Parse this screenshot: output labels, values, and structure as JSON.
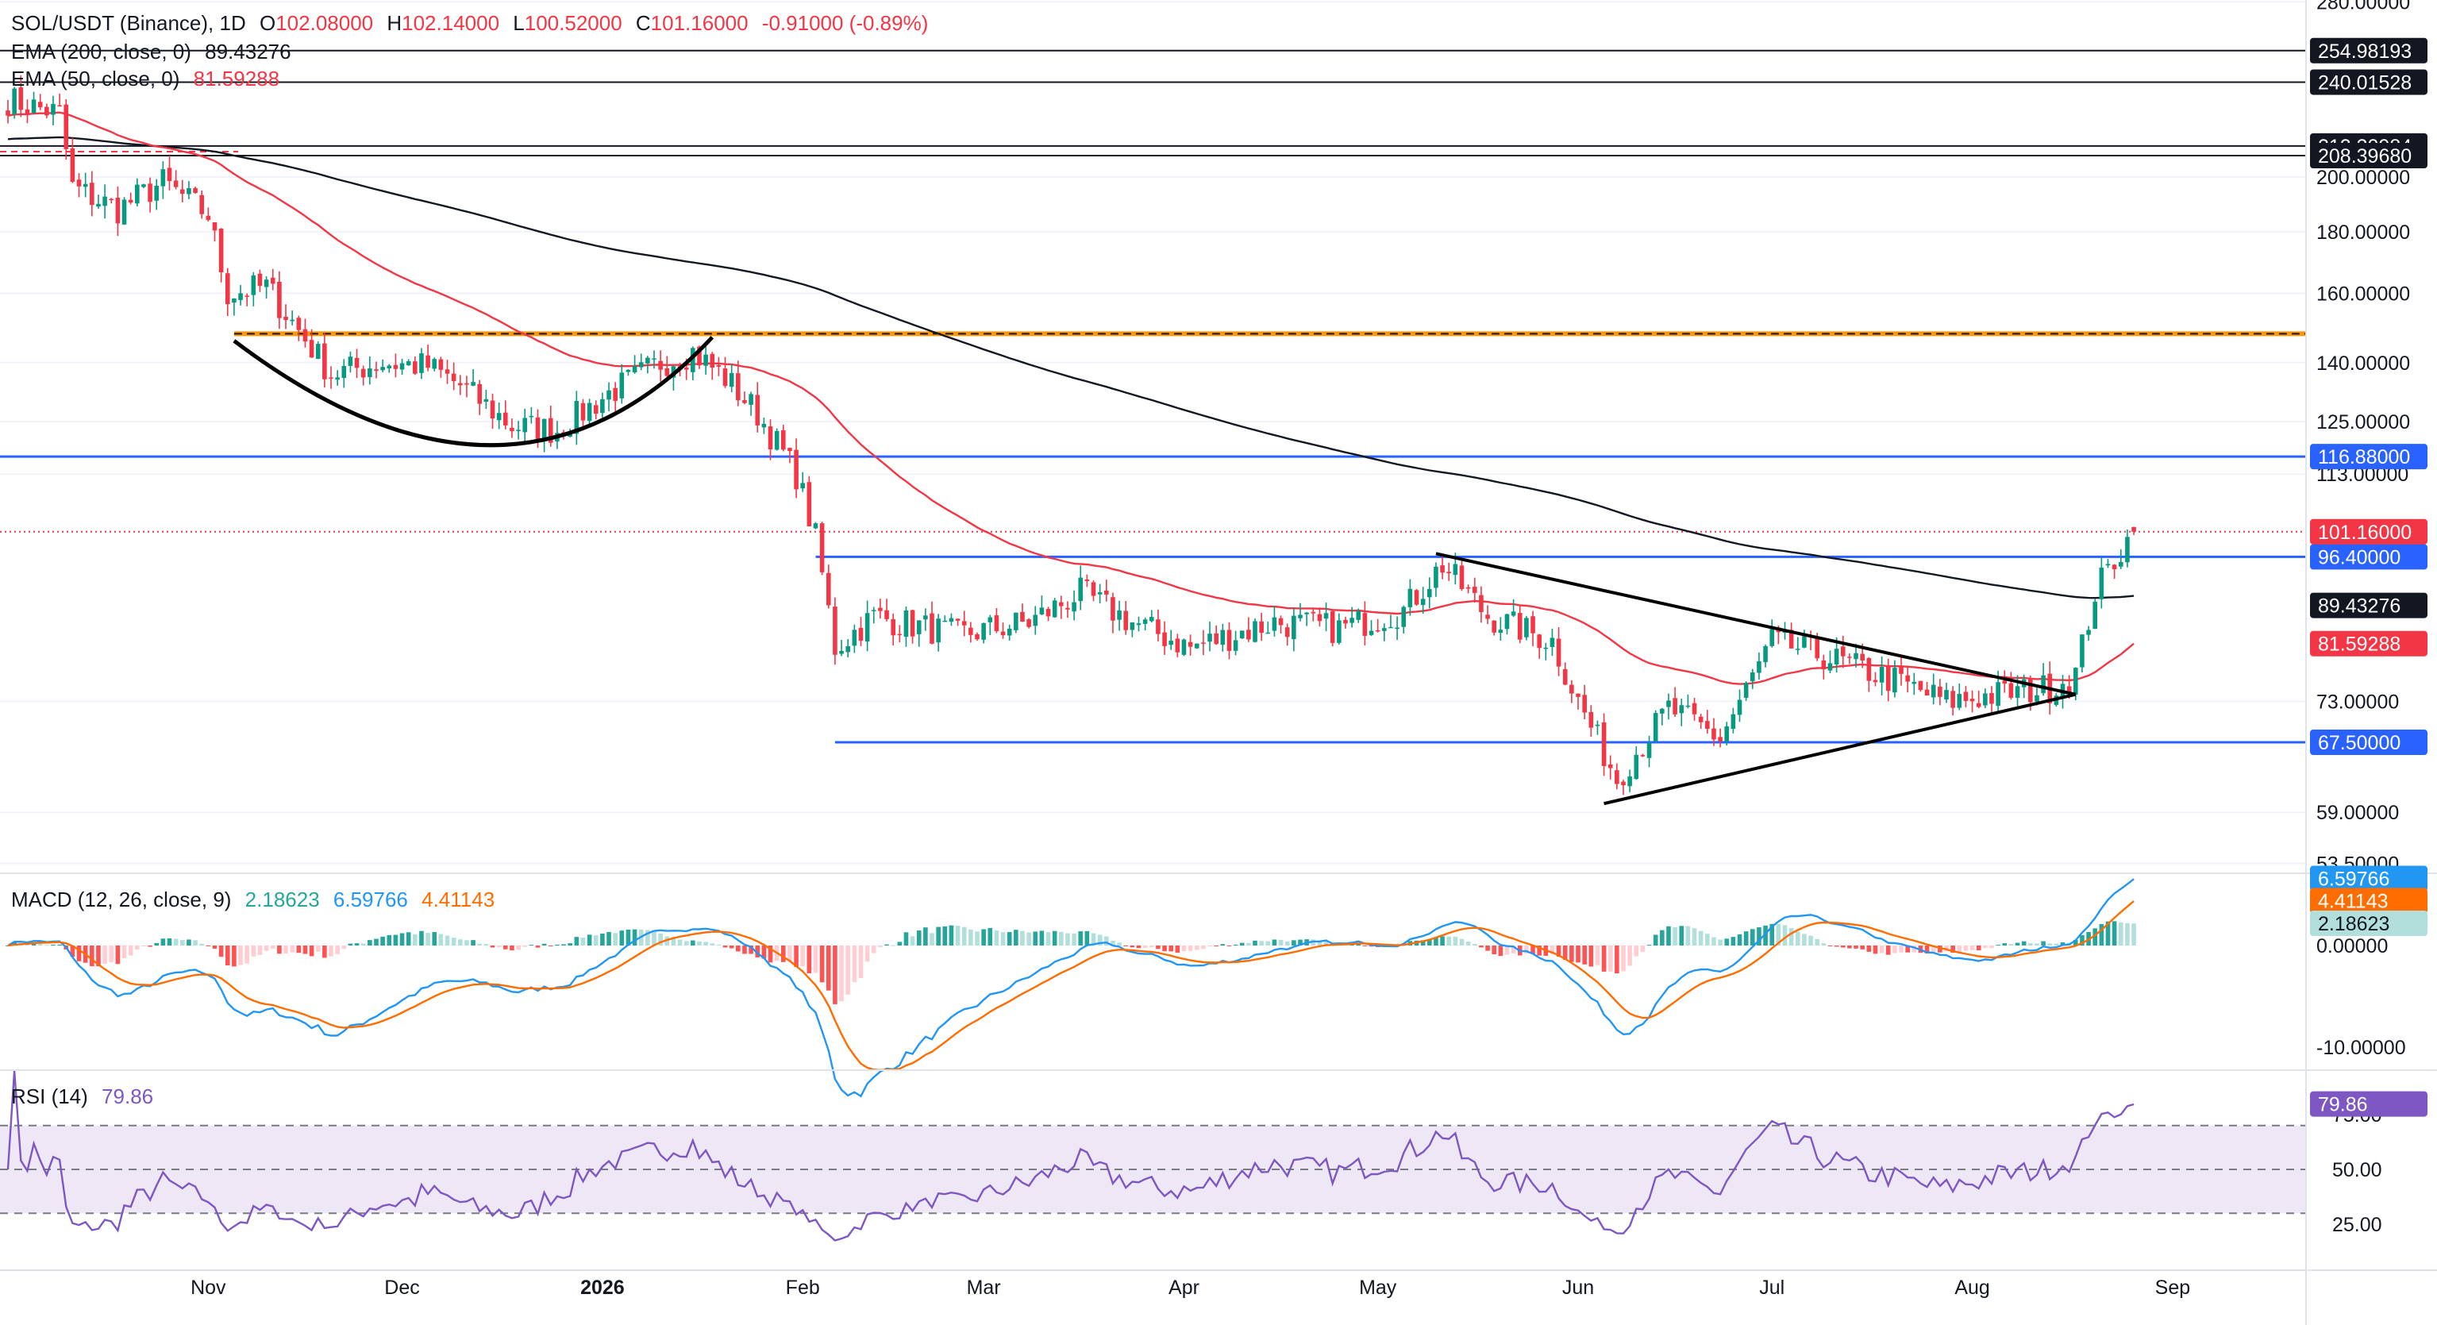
{
  "legend": {
    "symbol": "SOL/USDT (Binance), 1D",
    "open_label": "O",
    "open": "102.08000",
    "high_label": "H",
    "high": "102.14000",
    "low_label": "L",
    "low": "100.52000",
    "close_label": "C",
    "close": "101.16000",
    "change": "-0.91000 (-0.89%)",
    "ema200_label": "EMA (200, close, 0)",
    "ema200_value": "89.43276",
    "ema50_label": "EMA (50, close, 0)",
    "ema50_value": "81.59288",
    "macd_label": "MACD (12, 26, close, 9)",
    "macd_hist": "2.18623",
    "macd_line": "6.59766",
    "macd_signal": "4.41143",
    "rsi_label": "RSI (14)",
    "rsi_value": "79.86"
  },
  "colors": {
    "up": "#089981",
    "down": "#f23645",
    "ema200": "#131722",
    "ema50": "#f23645",
    "macd_line": "#2196f3",
    "signal_line": "#ff6d00",
    "hist_up_strong": "#26a69a",
    "hist_up_weak": "#b2dfdb",
    "hist_down_strong": "#ff5252",
    "hist_down_weak": "#ffcdd2",
    "rsi_line": "#7e57c2",
    "rsi_band": "#ede7f6",
    "hline_blue": "#2962ff",
    "hline_black": "#131722",
    "resistance_orange": "#ff9800"
  },
  "chart_data": {
    "type": "candlestick",
    "price_axis": {
      "scale": "log",
      "ticks": [
        "280.00000",
        "200.00000",
        "180.00000",
        "160.00000",
        "140.00000",
        "125.00000",
        "113.00000",
        "73.00000",
        "59.00000",
        "53.50000"
      ]
    },
    "time_axis": {
      "labels": [
        "Nov",
        "Dec",
        "2026",
        "Feb",
        "Mar",
        "Apr",
        "May",
        "Jun",
        "Jul",
        "Aug",
        "Sep"
      ]
    },
    "horizontal_levels": [
      {
        "value": 254.98193,
        "label": "254.98193",
        "style": "black"
      },
      {
        "value": 240.01528,
        "label": "240.01528",
        "style": "black"
      },
      {
        "value": 212.30984,
        "label": "212.30984",
        "style": "black"
      },
      {
        "value": 208.3968,
        "label": "208.39680",
        "style": "black"
      },
      {
        "value": 148.0,
        "style": "orange-dashed"
      },
      {
        "value": 116.88,
        "label": "116.88000",
        "style": "blue"
      },
      {
        "value": 96.4,
        "label": "96.40000",
        "style": "blue"
      },
      {
        "value": 67.5,
        "label": "67.50000",
        "style": "blue"
      }
    ],
    "last_price": {
      "value": 101.16,
      "label": "101.16000"
    },
    "ema200": {
      "last": 89.43276,
      "label": "89.43276"
    },
    "ema50": {
      "last": 81.59288,
      "label": "81.59288"
    },
    "close_anchors": [
      {
        "date": "2025-10-01",
        "close": 232
      },
      {
        "date": "2025-10-09",
        "close": 226
      },
      {
        "date": "2025-10-11",
        "close": 196
      },
      {
        "date": "2025-10-18",
        "close": 188
      },
      {
        "date": "2025-10-25",
        "close": 198
      },
      {
        "date": "2025-11-01",
        "close": 186
      },
      {
        "date": "2025-11-04",
        "close": 160
      },
      {
        "date": "2025-11-10",
        "close": 162
      },
      {
        "date": "2025-11-20",
        "close": 137
      },
      {
        "date": "2025-11-28",
        "close": 140
      },
      {
        "date": "2025-12-05",
        "close": 139
      },
      {
        "date": "2025-12-10",
        "close": 134
      },
      {
        "date": "2025-12-18",
        "close": 124
      },
      {
        "date": "2025-12-25",
        "close": 123
      },
      {
        "date": "2026-01-02",
        "close": 132
      },
      {
        "date": "2026-01-10",
        "close": 140
      },
      {
        "date": "2026-01-15",
        "close": 143
      },
      {
        "date": "2026-01-20",
        "close": 136
      },
      {
        "date": "2026-01-25",
        "close": 127
      },
      {
        "date": "2026-01-31",
        "close": 113
      },
      {
        "date": "2026-02-03",
        "close": 100
      },
      {
        "date": "2026-02-06",
        "close": 81
      },
      {
        "date": "2026-02-12",
        "close": 86
      },
      {
        "date": "2026-02-25",
        "close": 83
      },
      {
        "date": "2026-03-08",
        "close": 85
      },
      {
        "date": "2026-03-16",
        "close": 90
      },
      {
        "date": "2026-03-24",
        "close": 85
      },
      {
        "date": "2026-04-02",
        "close": 81
      },
      {
        "date": "2026-04-15",
        "close": 85
      },
      {
        "date": "2026-04-25",
        "close": 84
      },
      {
        "date": "2026-05-05",
        "close": 87
      },
      {
        "date": "2026-05-11",
        "close": 95
      },
      {
        "date": "2026-05-18",
        "close": 86
      },
      {
        "date": "2026-05-28",
        "close": 82
      },
      {
        "date": "2026-06-01",
        "close": 73
      },
      {
        "date": "2026-06-07",
        "close": 63
      },
      {
        "date": "2026-06-15",
        "close": 72
      },
      {
        "date": "2026-06-23",
        "close": 68
      },
      {
        "date": "2026-07-01",
        "close": 82
      },
      {
        "date": "2026-07-08",
        "close": 80
      },
      {
        "date": "2026-07-20",
        "close": 76
      },
      {
        "date": "2026-07-28",
        "close": 73
      },
      {
        "date": "2026-08-05",
        "close": 74
      },
      {
        "date": "2026-08-13",
        "close": 75
      },
      {
        "date": "2026-08-17",
        "close": 77
      },
      {
        "date": "2026-08-20",
        "close": 90
      },
      {
        "date": "2026-08-23",
        "close": 96
      },
      {
        "date": "2026-08-26",
        "close": 101.16
      }
    ],
    "trendlines": [
      {
        "name": "cup",
        "points": [
          [
            "2025-11-05",
            146
          ],
          [
            "2025-12-18",
            118
          ],
          [
            "2026-01-18",
            147
          ]
        ]
      },
      {
        "name": "triangle-top",
        "points": [
          [
            "2026-05-10",
            97
          ],
          [
            "2026-08-17",
            74
          ]
        ]
      },
      {
        "name": "triangle-bottom",
        "points": [
          [
            "2026-06-05",
            60
          ],
          [
            "2026-08-17",
            74
          ]
        ]
      }
    ],
    "macd": {
      "ticks": [
        "0.00000",
        "-10.00000"
      ],
      "last": {
        "macd": 6.59766,
        "signal": 4.41143,
        "hist": 2.18623
      }
    },
    "rsi": {
      "ticks": [
        "75.00",
        "50.00",
        "25.00"
      ],
      "upper": 70,
      "lower": 30,
      "last": 79.86
    }
  }
}
